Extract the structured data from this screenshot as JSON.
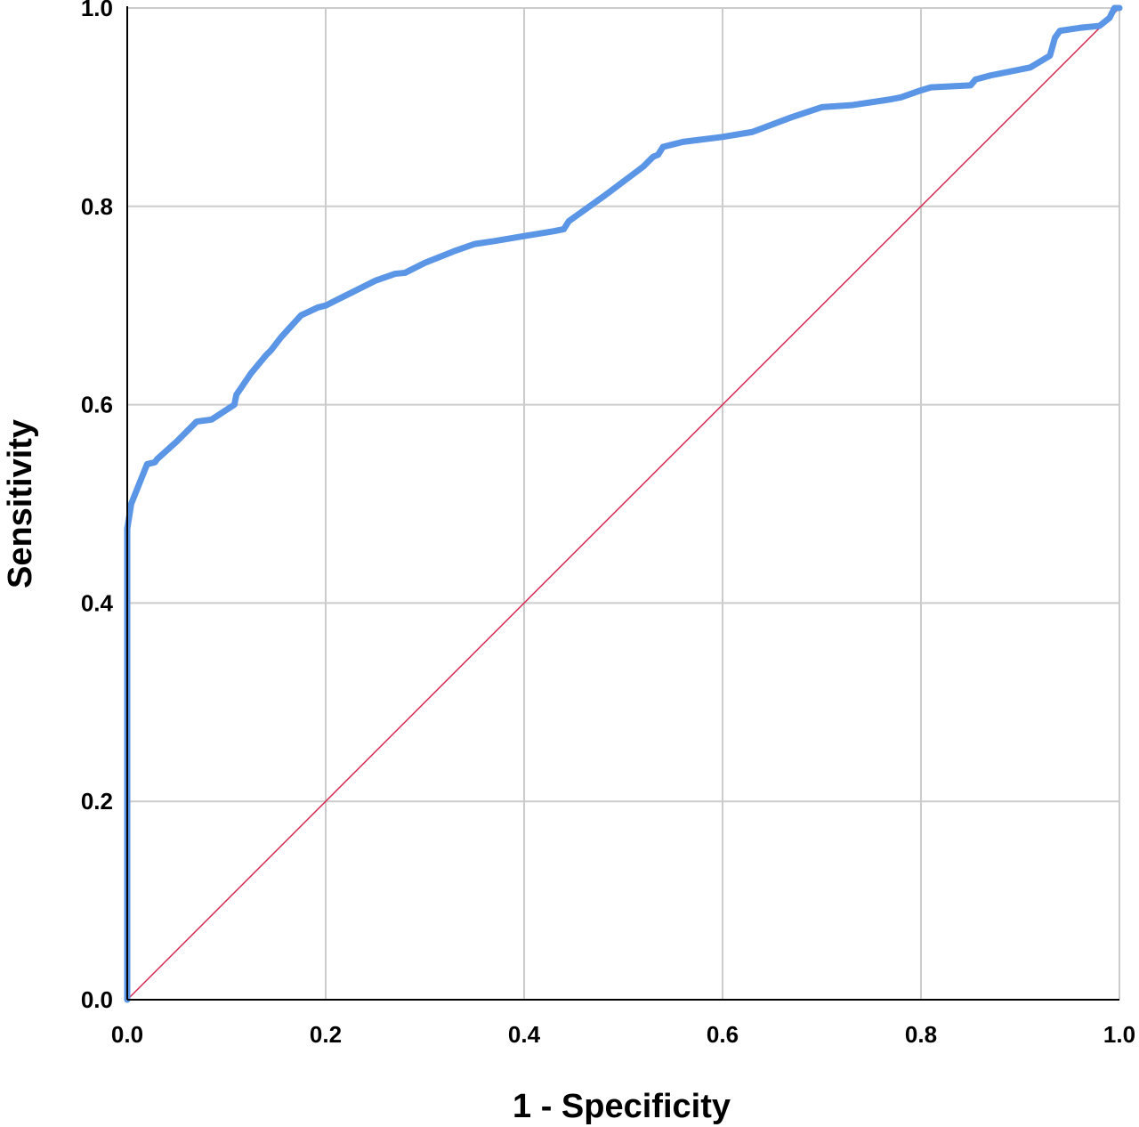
{
  "chart_data": {
    "type": "line",
    "title": "",
    "xlabel": "1 - Specificity",
    "ylabel": "Sensitivity",
    "xlim": [
      0,
      1
    ],
    "ylim": [
      0,
      1
    ],
    "grid": true,
    "x_ticks": [
      "0.0",
      "0.2",
      "0.4",
      "0.6",
      "0.8",
      "1.0"
    ],
    "y_ticks": [
      "0.0",
      "0.2",
      "0.4",
      "0.6",
      "0.8",
      "1.0"
    ],
    "colors": {
      "roc_curve": "#5b95e6",
      "reference_line": "#d4294f",
      "grid": "#cccccc",
      "axis": "#000000"
    },
    "series": [
      {
        "x": [
          0.0,
          0.0,
          0.004,
          0.01,
          0.02,
          0.028,
          0.03,
          0.05,
          0.07,
          0.085,
          0.108,
          0.11,
          0.125,
          0.14,
          0.145,
          0.155,
          0.175,
          0.192,
          0.2,
          0.22,
          0.25,
          0.27,
          0.28,
          0.3,
          0.33,
          0.35,
          0.37,
          0.4,
          0.43,
          0.44,
          0.445,
          0.48,
          0.52,
          0.53,
          0.535,
          0.54,
          0.56,
          0.6,
          0.63,
          0.67,
          0.7,
          0.73,
          0.77,
          0.78,
          0.8,
          0.81,
          0.85,
          0.855,
          0.87,
          0.9,
          0.91,
          0.93,
          0.935,
          0.94,
          0.96,
          0.98,
          0.99,
          0.995,
          1.0
        ],
        "y": [
          0.0,
          0.475,
          0.5,
          0.515,
          0.54,
          0.542,
          0.545,
          0.563,
          0.583,
          0.585,
          0.6,
          0.61,
          0.632,
          0.65,
          0.655,
          0.668,
          0.69,
          0.698,
          0.7,
          0.71,
          0.725,
          0.732,
          0.733,
          0.743,
          0.755,
          0.762,
          0.765,
          0.77,
          0.775,
          0.777,
          0.785,
          0.81,
          0.84,
          0.85,
          0.852,
          0.86,
          0.865,
          0.87,
          0.875,
          0.89,
          0.9,
          0.902,
          0.908,
          0.91,
          0.917,
          0.92,
          0.922,
          0.928,
          0.932,
          0.938,
          0.94,
          0.952,
          0.97,
          0.977,
          0.98,
          0.982,
          0.99,
          1.0,
          1.0
        ]
      },
      {
        "x": [
          0,
          1
        ],
        "y": [
          0,
          1
        ]
      }
    ]
  }
}
